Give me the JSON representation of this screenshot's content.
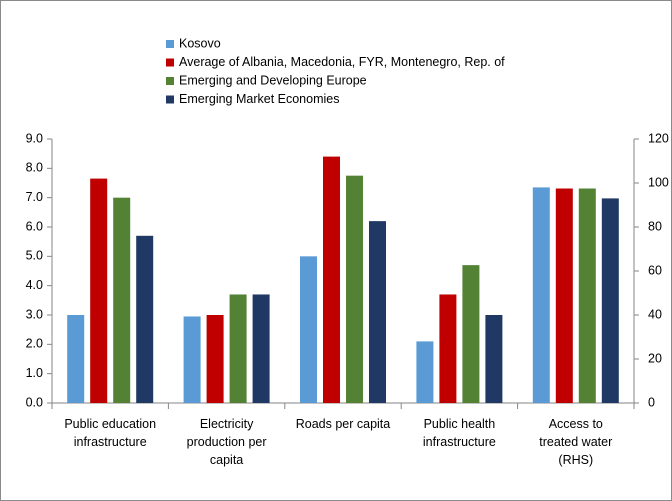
{
  "chart_data": {
    "type": "bar",
    "categories": [
      "Public education\ninfrastructure",
      "Electricity\nproduction per\ncapita",
      "Roads per capita",
      "Public health\ninfrastructure",
      "Access to\ntreated water\n(RHS)"
    ],
    "category_axes": [
      "y",
      "y",
      "y",
      "y",
      "y2"
    ],
    "series": [
      {
        "name": "Kosovo",
        "color": "#5b9bd5",
        "values": [
          3.0,
          2.95,
          5.0,
          2.1,
          98
        ]
      },
      {
        "name": "Average of Albania, Macedonia, FYR, Montenegro, Rep. of",
        "color": "#c00000",
        "values": [
          7.65,
          3.0,
          8.4,
          3.7,
          97.5
        ]
      },
      {
        "name": "Emerging and Developing Europe",
        "color": "#548235",
        "values": [
          7.0,
          3.7,
          7.75,
          4.7,
          97.5
        ]
      },
      {
        "name": "Emerging Market Economies",
        "color": "#1f3864",
        "values": [
          5.7,
          3.7,
          6.2,
          3.0,
          93
        ]
      }
    ],
    "ylim": [
      0,
      9
    ],
    "yticks": [
      {
        "value": 0,
        "label": "0.0"
      },
      {
        "value": 1,
        "label": "1.0"
      },
      {
        "value": 2,
        "label": "2.0"
      },
      {
        "value": 3,
        "label": "3.0"
      },
      {
        "value": 4,
        "label": "4.0"
      },
      {
        "value": 5,
        "label": "5.0"
      },
      {
        "value": 6,
        "label": "6.0"
      },
      {
        "value": 7,
        "label": "7.0"
      },
      {
        "value": 8,
        "label": "8.0"
      },
      {
        "value": 9,
        "label": "9.0"
      }
    ],
    "y2lim": [
      0,
      120
    ],
    "y2ticks": [
      0,
      20,
      40,
      60,
      80,
      100,
      120
    ],
    "grid": false
  }
}
